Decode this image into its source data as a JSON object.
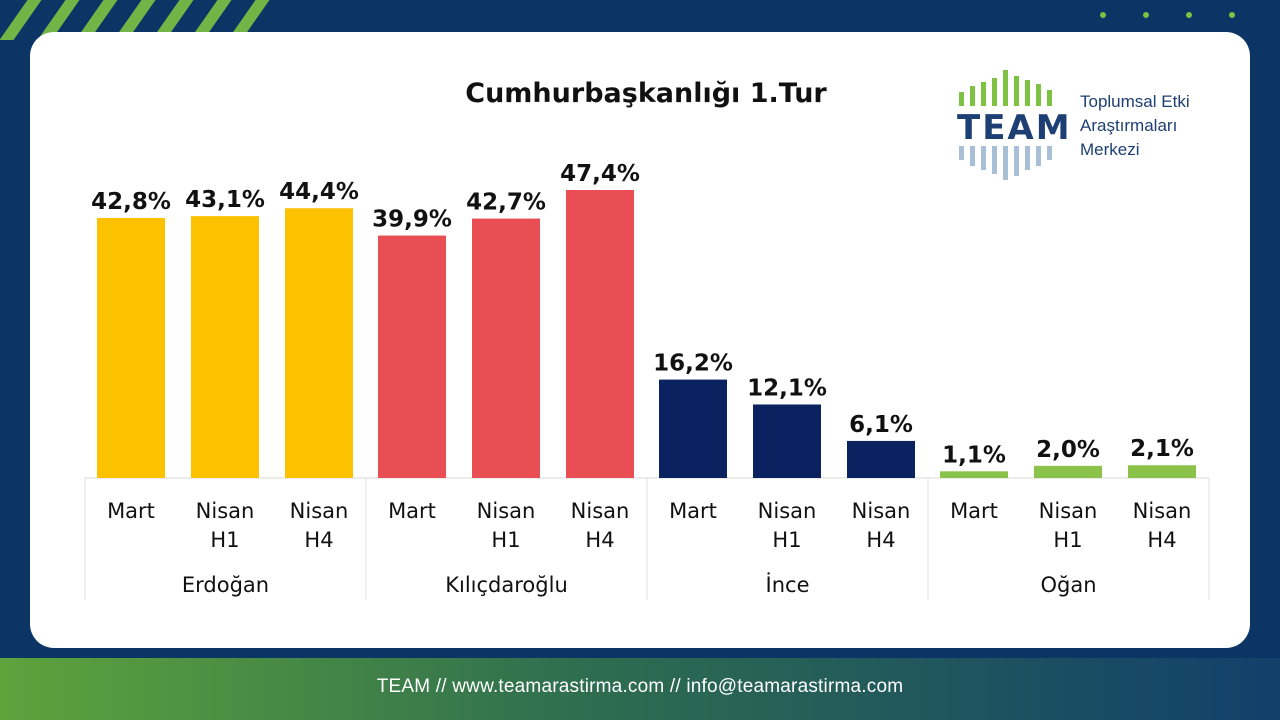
{
  "footer": {
    "text": "TEAM // www.teamarastirma.com // info@teamarastirma.com"
  },
  "logo": {
    "word": "TEAM",
    "line1": "Toplumsal Etki",
    "line2": "Araştırmaları",
    "line3": "Merkezi"
  },
  "colors": {
    "background": "#0c3566",
    "accent_green": "#7dc242",
    "erdogan": "#fcc200",
    "kilicdaroglu": "#e84e54",
    "ince": "#0b2260",
    "ogan": "#8bc34a"
  },
  "chart_data": {
    "type": "bar",
    "title": "Cumhurbaşkanlığı 1.Tur",
    "ylim": [
      0,
      50
    ],
    "grid": false,
    "legend": "none",
    "groups": [
      {
        "name": "Erdoğan",
        "color": "#fcc200",
        "bars": [
          {
            "label": [
              "Mart"
            ],
            "value": 42.8,
            "text": "42,8%"
          },
          {
            "label": [
              "Nisan",
              "H1"
            ],
            "value": 43.1,
            "text": "43,1%"
          },
          {
            "label": [
              "Nisan",
              "H4"
            ],
            "value": 44.4,
            "text": "44,4%"
          }
        ]
      },
      {
        "name": "Kılıçdaroğlu",
        "color": "#e84e54",
        "bars": [
          {
            "label": [
              "Mart"
            ],
            "value": 39.9,
            "text": "39,9%"
          },
          {
            "label": [
              "Nisan",
              "H1"
            ],
            "value": 42.7,
            "text": "42,7%"
          },
          {
            "label": [
              "Nisan",
              "H4"
            ],
            "value": 47.4,
            "text": "47,4%"
          }
        ]
      },
      {
        "name": "İnce",
        "color": "#0b2260",
        "bars": [
          {
            "label": [
              "Mart"
            ],
            "value": 16.2,
            "text": "16,2%"
          },
          {
            "label": [
              "Nisan",
              "H1"
            ],
            "value": 12.1,
            "text": "12,1%"
          },
          {
            "label": [
              "Nisan",
              "H4"
            ],
            "value": 6.1,
            "text": "6,1%"
          }
        ]
      },
      {
        "name": "Oğan",
        "color": "#8bc34a",
        "bars": [
          {
            "label": [
              "Mart"
            ],
            "value": 1.1,
            "text": "1,1%"
          },
          {
            "label": [
              "Nisan",
              "H1"
            ],
            "value": 2.0,
            "text": "2,0%"
          },
          {
            "label": [
              "Nisan",
              "H4"
            ],
            "value": 2.1,
            "text": "2,1%"
          }
        ]
      }
    ]
  }
}
